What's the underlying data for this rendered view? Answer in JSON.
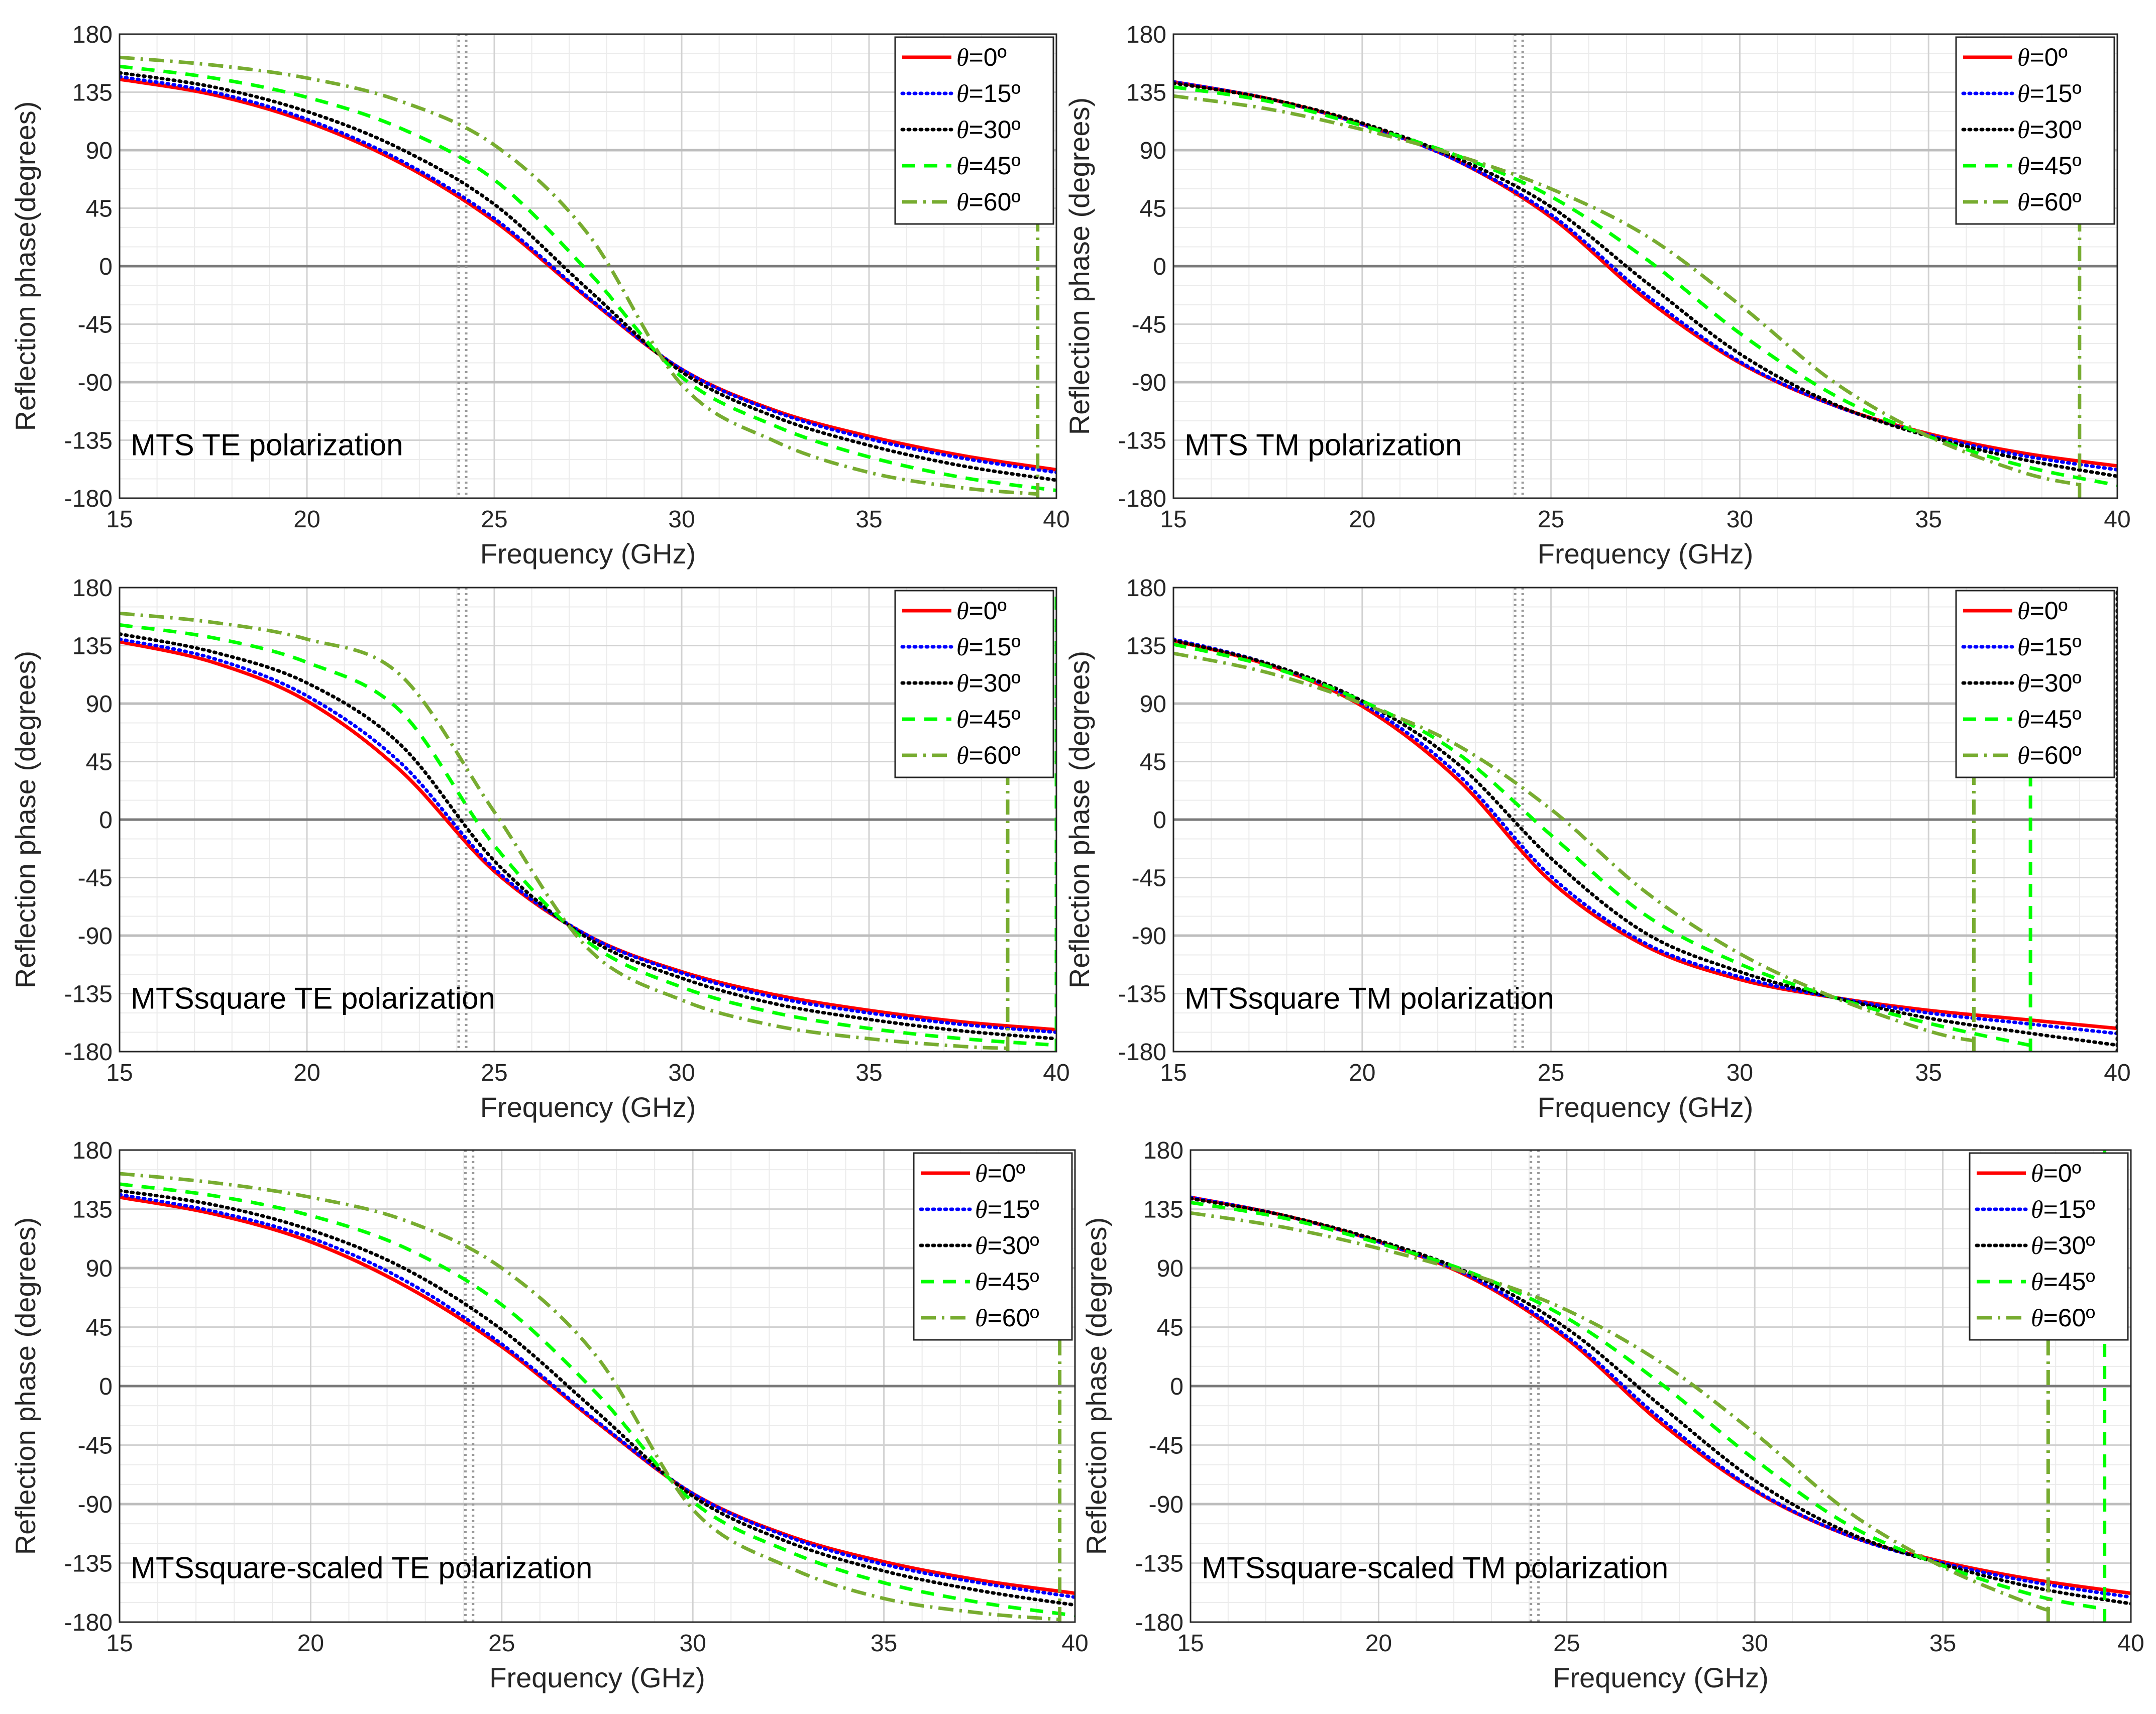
{
  "figure": {
    "legend_entries": [
      {
        "symbol": "θ",
        "text": "=0º",
        "color": "#ff0000",
        "style": "solid"
      },
      {
        "symbol": "θ",
        "text": "=15º",
        "color": "#0000ff",
        "style": "dotted"
      },
      {
        "symbol": "θ",
        "text": "=30º",
        "color": "#000000",
        "style": "dotted"
      },
      {
        "symbol": "θ",
        "text": "=45º",
        "color": "#00ff00",
        "style": "dashed"
      },
      {
        "symbol": "θ",
        "text": "=60º",
        "color": "#77ac30",
        "style": "dashdot"
      }
    ]
  },
  "chart_data": [
    {
      "type": "line",
      "title": "MTS  TE polarization",
      "xlabel": "Frequency (GHz)",
      "ylabel": "Reflection phase(degrees)",
      "xlim": [
        15,
        40
      ],
      "ylim": [
        -180,
        180
      ],
      "xticks": [
        15,
        20,
        25,
        30,
        35,
        40
      ],
      "yticks": [
        -180,
        -135,
        -90,
        -45,
        0,
        45,
        90,
        135,
        180
      ],
      "grid": true,
      "legend": "top-right",
      "x": [
        15,
        17.5,
        20,
        22.5,
        25,
        27.5,
        30,
        32.5,
        35,
        37.5,
        40
      ],
      "series": [
        {
          "name": "θ=0º",
          "values": [
            145,
            133,
            112,
            80,
            35,
            -25,
            -80,
            -112,
            -132,
            -147,
            -158
          ]
        },
        {
          "name": "θ=15º",
          "values": [
            147,
            135,
            114,
            82,
            37,
            -24,
            -80,
            -113,
            -134,
            -149,
            -160
          ]
        },
        {
          "name": "θ=30º",
          "values": [
            150,
            139,
            120,
            91,
            48,
            -18,
            -82,
            -117,
            -139,
            -155,
            -166
          ]
        },
        {
          "name": "θ=45º",
          "values": [
            155,
            146,
            131,
            107,
            67,
            -4,
            -86,
            -124,
            -148,
            -164,
            -174
          ]
        },
        {
          "name": "θ=60º",
          "values": [
            162,
            156,
            146,
            128,
            94,
            25,
            -92,
            -136,
            -160,
            -172,
            -178
          ]
        }
      ],
      "wrap": {
        "θ=60º": 39.5
      }
    },
    {
      "type": "line",
      "title": "MTS  TM polarization",
      "xlabel": "Frequency (GHz)",
      "ylabel": "Reflection phase (degrees)",
      "xlim": [
        15,
        40
      ],
      "ylim": [
        -180,
        180
      ],
      "xticks": [
        15,
        20,
        25,
        30,
        35,
        40
      ],
      "yticks": [
        -180,
        -135,
        -90,
        -45,
        0,
        45,
        90,
        135,
        180
      ],
      "grid": true,
      "legend": "top-right",
      "x": [
        15,
        17.5,
        20,
        22.5,
        25,
        27.5,
        30,
        32.5,
        35,
        37.5,
        40
      ],
      "series": [
        {
          "name": "θ=0º",
          "values": [
            143,
            130,
            110,
            82,
            38,
            -25,
            -75,
            -108,
            -130,
            -145,
            -155
          ]
        },
        {
          "name": "θ=15º",
          "values": [
            143,
            130,
            110,
            82,
            40,
            -22,
            -74,
            -108,
            -131,
            -147,
            -158
          ]
        },
        {
          "name": "θ=30º",
          "values": [
            142,
            130,
            111,
            84,
            46,
            -12,
            -68,
            -107,
            -132,
            -150,
            -163
          ]
        },
        {
          "name": "θ=45º",
          "values": [
            139,
            128,
            109,
            86,
            54,
            6,
            -52,
            -100,
            -132,
            -155,
            -170
          ]
        },
        {
          "name": "θ=60º",
          "values": [
            132,
            122,
            106,
            86,
            60,
            24,
            -30,
            -90,
            -132,
            -160,
            -176
          ]
        }
      ],
      "wrap": {
        "θ=60º": 39
      }
    },
    {
      "type": "line",
      "title": "MTSsquare  TE polarization",
      "xlabel": "Frequency (GHz)",
      "ylabel": "Reflection phase (degrees)",
      "xlim": [
        15,
        40
      ],
      "ylim": [
        -180,
        180
      ],
      "xticks": [
        15,
        20,
        25,
        30,
        35,
        40
      ],
      "yticks": [
        -180,
        -135,
        -90,
        -45,
        0,
        45,
        90,
        135,
        180
      ],
      "grid": true,
      "legend": "top-right",
      "x": [
        15,
        17.5,
        20,
        22.5,
        25,
        27.5,
        30,
        32.5,
        35,
        37.5,
        40
      ],
      "series": [
        {
          "name": "θ=0º",
          "values": [
            138,
            122,
            92,
            38,
            -40,
            -90,
            -118,
            -136,
            -148,
            -157,
            -163
          ]
        },
        {
          "name": "θ=15º",
          "values": [
            140,
            125,
            96,
            44,
            -38,
            -90,
            -119,
            -138,
            -150,
            -159,
            -165
          ]
        },
        {
          "name": "θ=30º",
          "values": [
            144,
            130,
            106,
            58,
            -32,
            -92,
            -123,
            -143,
            -155,
            -164,
            -170
          ]
        },
        {
          "name": "θ=45º",
          "values": [
            151,
            141,
            122,
            84,
            -20,
            -95,
            -130,
            -150,
            -162,
            -170,
            -175
          ]
        },
        {
          "name": "θ=60º",
          "values": [
            160,
            153,
            140,
            112,
            6,
            -100,
            -140,
            -160,
            -170,
            -176,
            -179
          ]
        }
      ],
      "wrap": {
        "θ=60º": 38.7,
        "θ=45º": 40
      }
    },
    {
      "type": "line",
      "title": "MTSsquare  TM polarization",
      "xlabel": "Frequency (GHz)",
      "ylabel": "Reflection phase (degrees)",
      "xlim": [
        15,
        40
      ],
      "ylim": [
        -180,
        180
      ],
      "xticks": [
        15,
        20,
        25,
        30,
        35,
        40
      ],
      "yticks": [
        -180,
        -135,
        -90,
        -45,
        0,
        45,
        90,
        135,
        180
      ],
      "grid": true,
      "legend": "top-right",
      "x": [
        15,
        17.5,
        20,
        22.5,
        25,
        27.5,
        30,
        32.5,
        35,
        37.5,
        40
      ],
      "series": [
        {
          "name": "θ=0º",
          "values": [
            139,
            120,
            88,
            32,
            -48,
            -98,
            -124,
            -138,
            -148,
            -155,
            -162
          ]
        },
        {
          "name": "θ=15º",
          "values": [
            140,
            121,
            90,
            36,
            -44,
            -96,
            -122,
            -138,
            -150,
            -158,
            -166
          ]
        },
        {
          "name": "θ=30º",
          "values": [
            139,
            121,
            92,
            44,
            -30,
            -88,
            -118,
            -138,
            -154,
            -165,
            -175
          ]
        },
        {
          "name": "θ=45º",
          "values": [
            136,
            119,
            92,
            52,
            -12,
            -74,
            -112,
            -138,
            -158,
            -174,
            -180
          ]
        },
        {
          "name": "θ=60º",
          "values": [
            129,
            114,
            90,
            58,
            8,
            -56,
            -104,
            -138,
            -164,
            -180,
            -180
          ]
        }
      ],
      "wrap": {
        "θ=60º": 36.2,
        "θ=45º": 37.7,
        "θ=30º": 40
      }
    },
    {
      "type": "line",
      "title": "MTSsquare-scaled  TE polarization",
      "xlabel": "Frequency (GHz)",
      "ylabel": "Reflection phase (degrees)",
      "xlim": [
        15,
        40
      ],
      "ylim": [
        -180,
        180
      ],
      "xticks": [
        15,
        20,
        25,
        30,
        35,
        40
      ],
      "yticks": [
        -180,
        -135,
        -90,
        -45,
        0,
        45,
        90,
        135,
        180
      ],
      "grid": true,
      "legend": "top-right",
      "x": [
        15,
        17.5,
        20,
        22.5,
        25,
        27.5,
        30,
        32.5,
        35,
        37.5,
        40
      ],
      "series": [
        {
          "name": "θ=0º",
          "values": [
            144,
            131,
            110,
            76,
            30,
            -28,
            -82,
            -114,
            -134,
            -148,
            -158
          ]
        },
        {
          "name": "θ=15º",
          "values": [
            146,
            133,
            113,
            80,
            32,
            -27,
            -82,
            -115,
            -136,
            -150,
            -161
          ]
        },
        {
          "name": "θ=30º",
          "values": [
            149,
            138,
            119,
            89,
            43,
            -20,
            -84,
            -119,
            -141,
            -156,
            -167
          ]
        },
        {
          "name": "θ=45º",
          "values": [
            154,
            145,
            130,
            105,
            62,
            -6,
            -88,
            -126,
            -150,
            -165,
            -175
          ]
        },
        {
          "name": "θ=60º",
          "values": [
            162,
            155,
            144,
            126,
            90,
            22,
            -94,
            -138,
            -162,
            -173,
            -179
          ]
        }
      ],
      "wrap": {
        "θ=60º": 39.6
      }
    },
    {
      "type": "line",
      "title": "MTSsquare-scaled  TM polarization",
      "xlabel": "Frequency (GHz)",
      "ylabel": "Reflection phase (degrees)",
      "xlim": [
        15,
        40
      ],
      "ylim": [
        -180,
        180
      ],
      "xticks": [
        15,
        20,
        25,
        30,
        35,
        40
      ],
      "yticks": [
        -180,
        -135,
        -90,
        -45,
        0,
        45,
        90,
        135,
        180
      ],
      "grid": true,
      "legend": "top-right",
      "x": [
        15,
        17.5,
        20,
        22.5,
        25,
        27.5,
        30,
        32.5,
        35,
        37.5,
        40
      ],
      "series": [
        {
          "name": "θ=0º",
          "values": [
            144,
            130,
            110,
            82,
            36,
            -28,
            -80,
            -114,
            -134,
            -148,
            -158
          ]
        },
        {
          "name": "θ=15º",
          "values": [
            144,
            130,
            110,
            83,
            38,
            -25,
            -79,
            -114,
            -135,
            -150,
            -161
          ]
        },
        {
          "name": "θ=30º",
          "values": [
            143,
            130,
            111,
            85,
            44,
            -15,
            -72,
            -112,
            -136,
            -154,
            -166
          ]
        },
        {
          "name": "θ=45º",
          "values": [
            140,
            128,
            109,
            86,
            52,
            2,
            -56,
            -106,
            -137,
            -160,
            -174
          ]
        },
        {
          "name": "θ=60º",
          "values": [
            132,
            121,
            105,
            85,
            58,
            18,
            -36,
            -96,
            -138,
            -168,
            -180
          ]
        }
      ],
      "wrap": {
        "θ=60º": 37.8,
        "θ=45º": 39.3
      }
    }
  ]
}
